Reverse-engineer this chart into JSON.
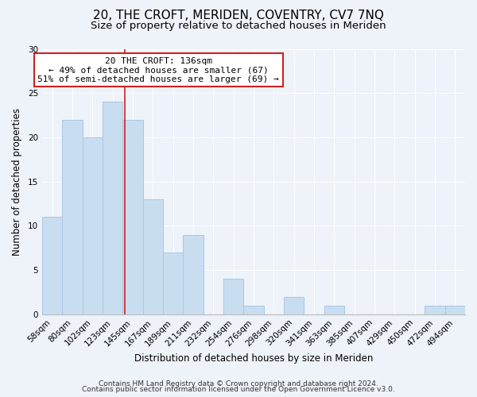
{
  "title": "20, THE CROFT, MERIDEN, COVENTRY, CV7 7NQ",
  "subtitle": "Size of property relative to detached houses in Meriden",
  "xlabel": "Distribution of detached houses by size in Meriden",
  "ylabel": "Number of detached properties",
  "footer_line1": "Contains HM Land Registry data © Crown copyright and database right 2024.",
  "footer_line2": "Contains public sector information licensed under the Open Government Licence v3.0.",
  "categories": [
    "58sqm",
    "80sqm",
    "102sqm",
    "123sqm",
    "145sqm",
    "167sqm",
    "189sqm",
    "211sqm",
    "232sqm",
    "254sqm",
    "276sqm",
    "298sqm",
    "320sqm",
    "341sqm",
    "363sqm",
    "385sqm",
    "407sqm",
    "429sqm",
    "450sqm",
    "472sqm",
    "494sqm"
  ],
  "values": [
    11,
    22,
    20,
    24,
    22,
    13,
    7,
    9,
    0,
    4,
    1,
    0,
    2,
    0,
    1,
    0,
    0,
    0,
    0,
    1,
    1
  ],
  "bar_color": "#c9ddf0",
  "bar_edge_color": "#a8c8e8",
  "marker_color": "#cc2222",
  "annotation_text_line1": "20 THE CROFT: 136sqm",
  "annotation_text_line2": "← 49% of detached houses are smaller (67)",
  "annotation_text_line3": "51% of semi-detached houses are larger (69) →",
  "annotation_box_facecolor": "#ffffff",
  "annotation_box_edgecolor": "#cc2222",
  "ylim": [
    0,
    30
  ],
  "yticks": [
    0,
    5,
    10,
    15,
    20,
    25,
    30
  ],
  "background_color": "#eef2f9",
  "title_fontsize": 11,
  "subtitle_fontsize": 9.5,
  "axis_label_fontsize": 8.5,
  "tick_fontsize": 7.5,
  "annotation_fontsize": 8,
  "footer_fontsize": 6.5
}
